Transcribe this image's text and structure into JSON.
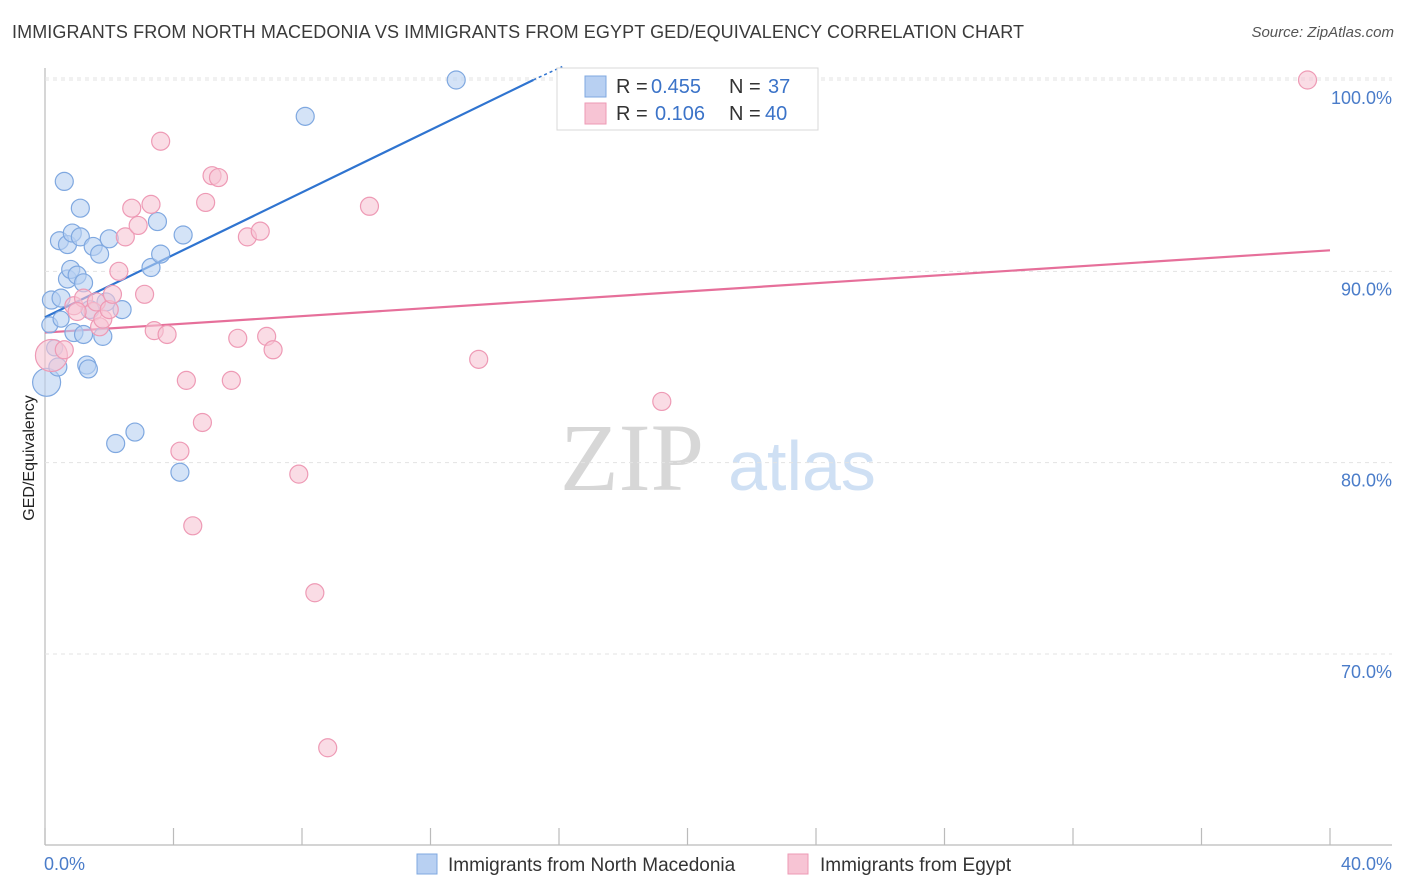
{
  "title": "IMMIGRANTS FROM NORTH MACEDONIA VS IMMIGRANTS FROM EGYPT GED/EQUIVALENCY CORRELATION CHART",
  "source": "Source: ZipAtlas.com",
  "watermark": {
    "zip": "ZIP",
    "atlas": "atlas"
  },
  "colors": {
    "blue_fill": "#b8d0f2",
    "blue_stroke": "#7fa8e0",
    "blue_line": "#2f74d0",
    "pink_fill": "#f7c4d4",
    "pink_stroke": "#ee9ab5",
    "pink_line": "#e66f9a"
  },
  "legend": {
    "rows": [
      {
        "r_label": "R =",
        "r_value": "0.455",
        "n_label": "N =",
        "n_value": "37"
      },
      {
        "r_label": "R =",
        "r_value": "0.106",
        "n_label": "N =",
        "n_value": "40"
      }
    ]
  },
  "chart_data": {
    "type": "scatter",
    "title": "IMMIGRANTS FROM NORTH MACEDONIA VS IMMIGRANTS FROM EGYPT GED/EQUIVALENCY CORRELATION CHART",
    "xlabel": "",
    "ylabel": "GED/Equivalency",
    "xlim": [
      0,
      40
    ],
    "ylim": [
      61,
      102
    ],
    "x_tick_labels": [
      "0.0%",
      "40.0%"
    ],
    "y_ticks": [
      70,
      80,
      90,
      100
    ],
    "y_tick_labels": [
      "70.0%",
      "80.0%",
      "90.0%",
      "100.0%"
    ],
    "grid": true,
    "series": [
      {
        "name": "Immigrants from North Macedonia",
        "color": "blue",
        "trend": {
          "x1": 0.0,
          "y1": 87.6,
          "x2": 15.2,
          "y2": 100.0
        },
        "points": [
          {
            "x": 0.05,
            "y": 84.2,
            "s": 14
          },
          {
            "x": 0.15,
            "y": 87.2,
            "s": 8
          },
          {
            "x": 0.2,
            "y": 88.5,
            "s": 9
          },
          {
            "x": 0.4,
            "y": 85.0,
            "s": 9
          },
          {
            "x": 0.45,
            "y": 91.6,
            "s": 9
          },
          {
            "x": 0.5,
            "y": 88.6,
            "s": 9
          },
          {
            "x": 0.6,
            "y": 94.7,
            "s": 9
          },
          {
            "x": 0.7,
            "y": 91.4,
            "s": 9
          },
          {
            "x": 0.7,
            "y": 89.6,
            "s": 9
          },
          {
            "x": 0.8,
            "y": 90.1,
            "s": 9
          },
          {
            "x": 0.85,
            "y": 92.0,
            "s": 9
          },
          {
            "x": 0.9,
            "y": 86.8,
            "s": 9
          },
          {
            "x": 1.0,
            "y": 89.8,
            "s": 9
          },
          {
            "x": 1.1,
            "y": 91.8,
            "s": 9
          },
          {
            "x": 1.1,
            "y": 93.3,
            "s": 9
          },
          {
            "x": 1.2,
            "y": 89.4,
            "s": 9
          },
          {
            "x": 1.2,
            "y": 86.7,
            "s": 9
          },
          {
            "x": 1.3,
            "y": 85.1,
            "s": 9
          },
          {
            "x": 1.35,
            "y": 84.9,
            "s": 9
          },
          {
            "x": 1.4,
            "y": 88.0,
            "s": 9
          },
          {
            "x": 1.5,
            "y": 91.3,
            "s": 9
          },
          {
            "x": 1.7,
            "y": 90.9,
            "s": 9
          },
          {
            "x": 1.8,
            "y": 86.6,
            "s": 9
          },
          {
            "x": 1.9,
            "y": 88.4,
            "s": 9
          },
          {
            "x": 2.0,
            "y": 91.7,
            "s": 9
          },
          {
            "x": 2.2,
            "y": 81.0,
            "s": 9
          },
          {
            "x": 2.4,
            "y": 88.0,
            "s": 9
          },
          {
            "x": 2.8,
            "y": 81.6,
            "s": 9
          },
          {
            "x": 3.3,
            "y": 90.2,
            "s": 9
          },
          {
            "x": 3.5,
            "y": 92.6,
            "s": 9
          },
          {
            "x": 3.6,
            "y": 90.9,
            "s": 9
          },
          {
            "x": 4.2,
            "y": 79.5,
            "s": 9
          },
          {
            "x": 4.3,
            "y": 91.9,
            "s": 9
          },
          {
            "x": 8.1,
            "y": 98.1,
            "s": 9
          },
          {
            "x": 12.8,
            "y": 100.0,
            "s": 9
          },
          {
            "x": 0.5,
            "y": 87.5,
            "s": 8
          },
          {
            "x": 0.3,
            "y": 86.0,
            "s": 8
          }
        ]
      },
      {
        "name": "Immigrants from Egypt",
        "color": "pink",
        "trend": {
          "x1": 0.0,
          "y1": 86.8,
          "x2": 40.0,
          "y2": 91.1
        },
        "points": [
          {
            "x": 0.2,
            "y": 85.6,
            "s": 16
          },
          {
            "x": 0.9,
            "y": 88.2,
            "s": 9
          },
          {
            "x": 1.2,
            "y": 88.6,
            "s": 9
          },
          {
            "x": 1.5,
            "y": 87.9,
            "s": 9
          },
          {
            "x": 1.6,
            "y": 88.4,
            "s": 9
          },
          {
            "x": 1.7,
            "y": 87.1,
            "s": 9
          },
          {
            "x": 1.8,
            "y": 87.5,
            "s": 9
          },
          {
            "x": 2.0,
            "y": 88.0,
            "s": 9
          },
          {
            "x": 2.1,
            "y": 88.8,
            "s": 9
          },
          {
            "x": 2.3,
            "y": 90.0,
            "s": 9
          },
          {
            "x": 2.5,
            "y": 91.8,
            "s": 9
          },
          {
            "x": 2.7,
            "y": 93.3,
            "s": 9
          },
          {
            "x": 2.9,
            "y": 92.4,
            "s": 9
          },
          {
            "x": 3.1,
            "y": 88.8,
            "s": 9
          },
          {
            "x": 3.3,
            "y": 93.5,
            "s": 9
          },
          {
            "x": 3.4,
            "y": 86.9,
            "s": 9
          },
          {
            "x": 3.6,
            "y": 96.8,
            "s": 9
          },
          {
            "x": 3.8,
            "y": 86.7,
            "s": 9
          },
          {
            "x": 4.2,
            "y": 80.6,
            "s": 9
          },
          {
            "x": 4.4,
            "y": 84.3,
            "s": 9
          },
          {
            "x": 4.6,
            "y": 76.7,
            "s": 9
          },
          {
            "x": 4.9,
            "y": 82.1,
            "s": 9
          },
          {
            "x": 5.0,
            "y": 93.6,
            "s": 9
          },
          {
            "x": 5.2,
            "y": 95.0,
            "s": 9
          },
          {
            "x": 5.4,
            "y": 94.9,
            "s": 9
          },
          {
            "x": 5.8,
            "y": 84.3,
            "s": 9
          },
          {
            "x": 6.0,
            "y": 86.5,
            "s": 9
          },
          {
            "x": 6.3,
            "y": 91.8,
            "s": 9
          },
          {
            "x": 6.7,
            "y": 92.1,
            "s": 9
          },
          {
            "x": 6.9,
            "y": 86.6,
            "s": 9
          },
          {
            "x": 7.1,
            "y": 85.9,
            "s": 9
          },
          {
            "x": 7.9,
            "y": 79.4,
            "s": 9
          },
          {
            "x": 8.4,
            "y": 73.2,
            "s": 9
          },
          {
            "x": 8.8,
            "y": 65.1,
            "s": 9
          },
          {
            "x": 10.1,
            "y": 93.4,
            "s": 9
          },
          {
            "x": 13.5,
            "y": 85.4,
            "s": 9
          },
          {
            "x": 19.2,
            "y": 83.2,
            "s": 9
          },
          {
            "x": 39.3,
            "y": 100.0,
            "s": 9
          },
          {
            "x": 0.6,
            "y": 85.9,
            "s": 9
          },
          {
            "x": 1.0,
            "y": 87.9,
            "s": 9
          }
        ]
      }
    ]
  }
}
